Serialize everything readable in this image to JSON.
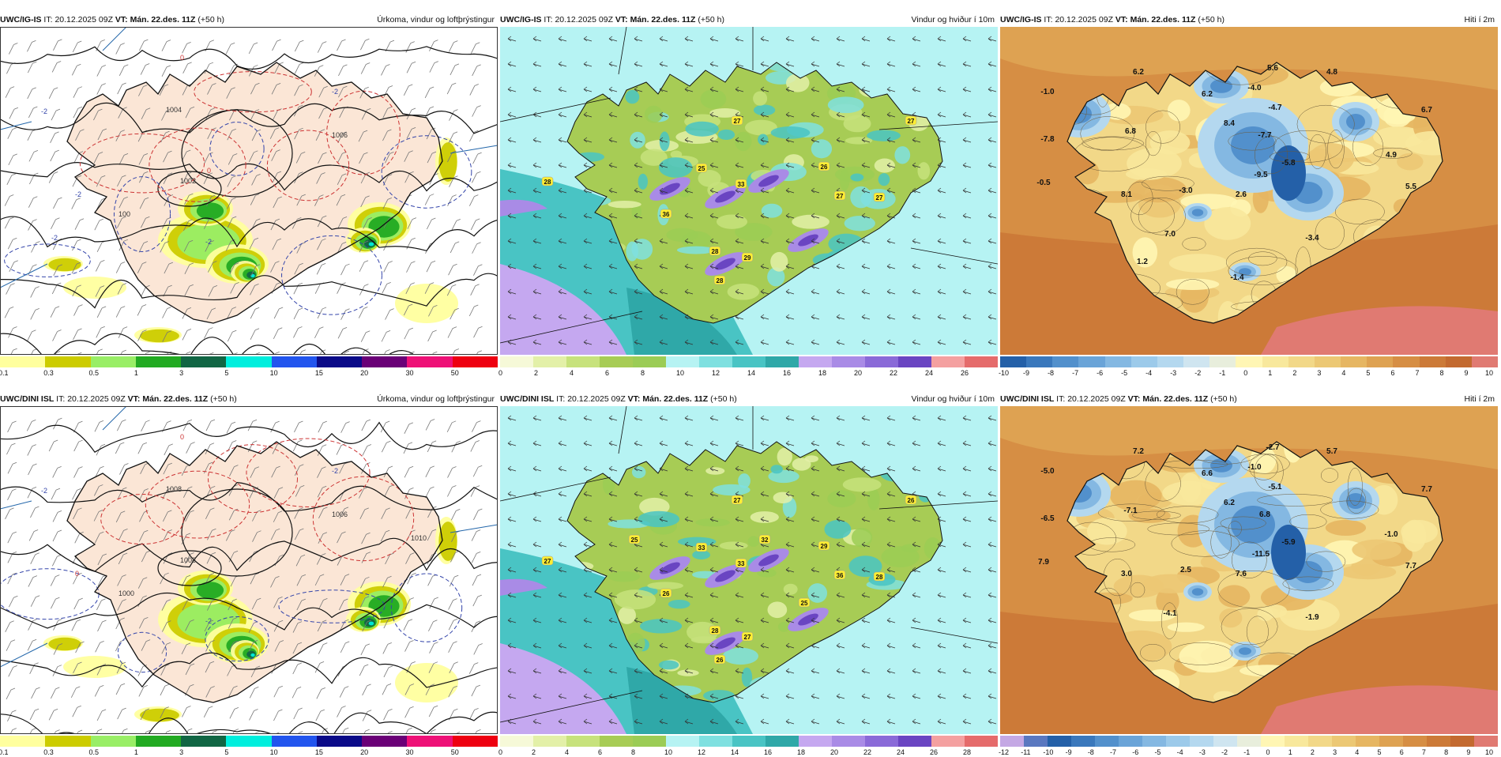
{
  "panels": [
    {
      "id": "p1",
      "model": "UWC/IG-IS",
      "it_label": "IT:",
      "it_value": "20.12.2025 09Z",
      "vt_label": "VT:",
      "vt_value": "Mán. 22.des. 11Z",
      "lead": "(+50 h)",
      "title": "Úrkoma, vindur og loftþrýstingur",
      "kind": "precip",
      "colorbar": [
        "#ffff9e",
        "#cccc00",
        "#99ee66",
        "#22aa22",
        "#116644",
        "#00eedd",
        "#2255ee",
        "#0a0a88",
        "#6a0077",
        "#ee1177",
        "#ee0011"
      ],
      "ticks": [
        "0.1",
        "0.3",
        "0.5",
        "1",
        "3",
        "5",
        "10",
        "15",
        "20",
        "30",
        "50"
      ],
      "isobar_labels": [
        "1004",
        "1002",
        "1006",
        "100"
      ],
      "temp_labels": [
        "0",
        "-2",
        "-2",
        "-2",
        "-2",
        "0",
        "-2"
      ]
    },
    {
      "id": "p2",
      "model": "UWC/IG-IS",
      "it_label": "IT:",
      "it_value": "20.12.2025 09Z",
      "vt_label": "VT:",
      "vt_value": "Mán. 22.des. 11Z",
      "lead": "(+50 h)",
      "title": "Vindur og hviður í 10m",
      "kind": "wind",
      "colorbar": [
        "#f6f9d8",
        "#e3f0a8",
        "#c7e27c",
        "#a7cc55",
        "#9bcc55",
        "#b6f3f3",
        "#7fe0e0",
        "#49c4c4",
        "#2fa8a8",
        "#c5a8f0",
        "#a98be6",
        "#8a6ad8",
        "#6a45c2",
        "#f4a0a0",
        "#e56b6b"
      ],
      "ticks": [
        "0",
        "2",
        "4",
        "6",
        "8",
        "10",
        "12",
        "14",
        "16",
        "18",
        "20",
        "22",
        "24",
        "26"
      ],
      "wind_labels": [
        "27",
        "27",
        "25",
        "33",
        "26",
        "28",
        "36",
        "27",
        "27",
        "28",
        "29",
        "28"
      ]
    },
    {
      "id": "p3",
      "model": "UWC/IG-IS",
      "it_label": "IT:",
      "it_value": "20.12.2025 09Z",
      "vt_label": "VT:",
      "vt_value": "Mán. 22.des. 11Z",
      "lead": "(+50 h)",
      "title": "Hiti í 2m",
      "kind": "temp",
      "colorbar": [
        "#2460a8",
        "#3a78bc",
        "#5290cc",
        "#6aa4d8",
        "#84b8e2",
        "#9ccaea",
        "#b4d8ef",
        "#cfe5f0",
        "#e8eedc",
        "#fff6b4",
        "#f8e89c",
        "#f2d888",
        "#ecc874",
        "#e6b662",
        "#dea252",
        "#d68e44",
        "#cc7a38",
        "#c36a30",
        "#e07a72"
      ],
      "ticks": [
        "-10",
        "-9",
        "-8",
        "-7",
        "-6",
        "-5",
        "-4",
        "-3",
        "-2",
        "-1",
        "0",
        "1",
        "2",
        "3",
        "4",
        "5",
        "6",
        "7",
        "8",
        "9",
        "10"
      ],
      "temp_labels": [
        "6.2",
        "-1.0",
        "6.2",
        "5.6",
        "-4.0",
        "4.8",
        "-4.7",
        "6.7",
        "6.8",
        "8.4",
        "-7.7",
        "-7.8",
        "-9.5",
        "-5.8",
        "4.9",
        "-0.5",
        "8.1",
        "-3.0",
        "2.6",
        "5.5",
        "7.0",
        "-3.4",
        "1.2",
        "-1.4"
      ]
    },
    {
      "id": "p4",
      "model": "UWC/DINI ISL",
      "it_label": "IT:",
      "it_value": "20.12.2025 09Z",
      "vt_label": "VT:",
      "vt_value": "Mán. 22.des. 11Z",
      "lead": "(+50 h)",
      "title": "Úrkoma, vindur og loftþrýstingur",
      "kind": "precip",
      "colorbar": [
        "#ffff9e",
        "#cccc00",
        "#99ee66",
        "#22aa22",
        "#116644",
        "#00eedd",
        "#2255ee",
        "#0a0a88",
        "#6a0077",
        "#ee1177",
        "#ee0011"
      ],
      "ticks": [
        "0.1",
        "0.3",
        "0.5",
        "1",
        "3",
        "5",
        "10",
        "15",
        "20",
        "30",
        "50"
      ],
      "isobar_labels": [
        "1008",
        "1008",
        "1006",
        "1000",
        "1010"
      ],
      "temp_labels": [
        "0",
        "-2",
        "0",
        "-2",
        "-2"
      ]
    },
    {
      "id": "p5",
      "model": "UWC/DINI ISL",
      "it_label": "IT:",
      "it_value": "20.12.2025 09Z",
      "vt_label": "VT:",
      "vt_value": "Mán. 22.des. 11Z",
      "lead": "(+50 h)",
      "title": "Vindur og hviður í 10m",
      "kind": "wind",
      "colorbar": [
        "#f6f9d8",
        "#e3f0a8",
        "#c7e27c",
        "#a7cc55",
        "#9bcc55",
        "#b6f3f3",
        "#7fe0e0",
        "#49c4c4",
        "#2fa8a8",
        "#c5a8f0",
        "#a98be6",
        "#8a6ad8",
        "#6a45c2",
        "#f4a0a0",
        "#e56b6b"
      ],
      "ticks": [
        "0",
        "2",
        "4",
        "6",
        "8",
        "10",
        "12",
        "14",
        "16",
        "18",
        "20",
        "22",
        "24",
        "26",
        "28"
      ],
      "wind_labels": [
        "27",
        "26",
        "33",
        "33",
        "29",
        "27",
        "26",
        "36",
        "28",
        "28",
        "27",
        "26",
        "25",
        "32",
        "25"
      ]
    },
    {
      "id": "p6",
      "model": "UWC/DINI ISL",
      "it_label": "IT:",
      "it_value": "20.12.2025 09Z",
      "vt_label": "VT:",
      "vt_value": "Mán. 22.des. 11Z",
      "lead": "(+50 h)",
      "title": "Hiti í 2m",
      "kind": "temp",
      "colorbar": [
        "#c4a8e4",
        "#5a78c0",
        "#2460a8",
        "#3a78bc",
        "#5290cc",
        "#6aa4d8",
        "#84b8e2",
        "#9ccaea",
        "#b4d8ef",
        "#cfe5f0",
        "#e8eedc",
        "#fff6b4",
        "#f8e89c",
        "#f2d888",
        "#ecc874",
        "#e6b662",
        "#dea252",
        "#d68e44",
        "#cc7a38",
        "#c36a30",
        "#e07a72"
      ],
      "ticks": [
        "-12",
        "-11",
        "-10",
        "-9",
        "-8",
        "-7",
        "-6",
        "-5",
        "-4",
        "-3",
        "-2",
        "-1",
        "0",
        "1",
        "2",
        "3",
        "4",
        "5",
        "6",
        "7",
        "8",
        "9",
        "10"
      ],
      "temp_labels": [
        "7.2",
        "-5.0",
        "6.6",
        "-2.7",
        "-1.0",
        "5.7",
        "-5.1",
        "7.7",
        "-7.1",
        "6.2",
        "6.8",
        "-6.5",
        "-11.5",
        "-5.9",
        "-1.0",
        "7.9",
        "3.0",
        "2.5",
        "7.6",
        "7.7",
        "-4.1",
        "-1.9"
      ]
    }
  ]
}
